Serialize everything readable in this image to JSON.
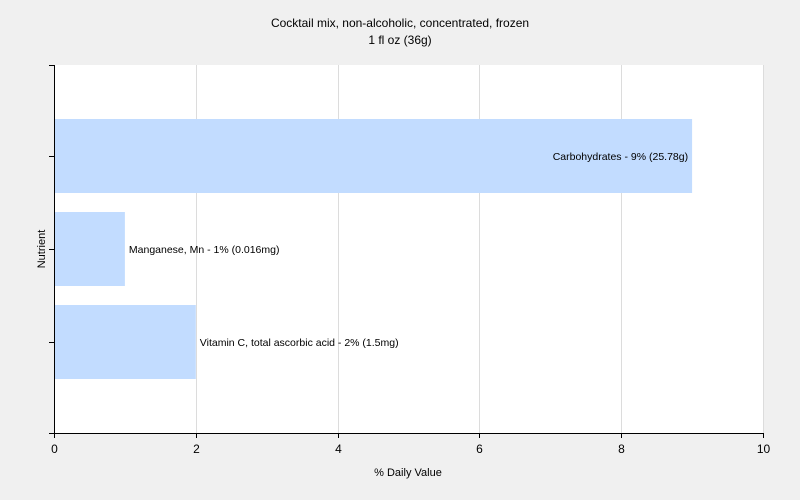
{
  "chart_data": {
    "type": "bar",
    "orientation": "horizontal",
    "title": "Cocktail mix, non-alcoholic, concentrated, frozen",
    "subtitle": "1 fl oz (36g)",
    "xlabel": "% Daily Value",
    "ylabel": "Nutrient",
    "xlim": [
      0,
      10
    ],
    "xticks": [
      0,
      2,
      4,
      6,
      8,
      10
    ],
    "grid": true,
    "bar_color": "#c2dcff",
    "categories": [
      "Carbohydrates",
      "Manganese, Mn",
      "Vitamin C, total ascorbic acid"
    ],
    "values": [
      9,
      1,
      2
    ],
    "data_labels": [
      "Carbohydrates - 9% (25.78g)",
      "Manganese, Mn - 1% (0.016mg)",
      "Vitamin C, total ascorbic acid - 2% (1.5mg)"
    ]
  }
}
